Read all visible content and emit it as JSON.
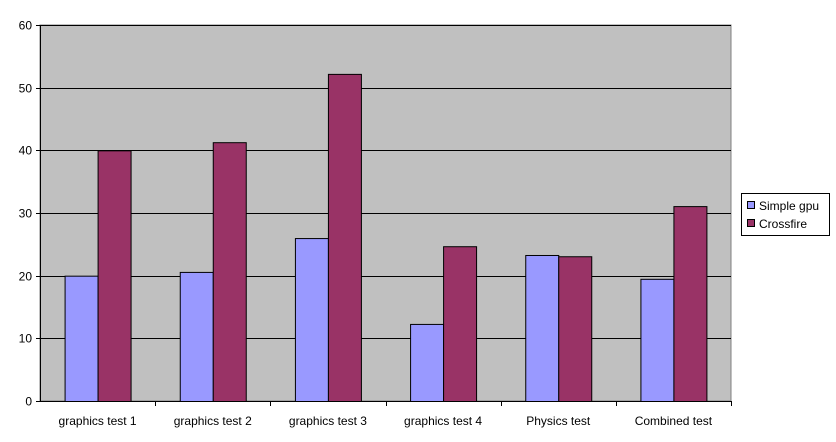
{
  "chart_data": {
    "type": "bar",
    "title": "",
    "xlabel": "",
    "ylabel": "",
    "categories": [
      "graphics test 1",
      "graphics test 2",
      "graphics test 3",
      "graphics test 4",
      "Physics test",
      "Combined test"
    ],
    "series": [
      {
        "name": "Simple gpu",
        "color": "#9999ff",
        "values": [
          20,
          20.6,
          26,
          12.3,
          23.3,
          19.5
        ]
      },
      {
        "name": "Crossfire",
        "color": "#993366",
        "values": [
          40,
          41.3,
          52.2,
          24.7,
          23.1,
          31.1
        ]
      }
    ],
    "ylim": [
      0,
      60
    ],
    "yticks": [
      0,
      10,
      20,
      30,
      40,
      50,
      60
    ],
    "grid": true,
    "legend_position": "right",
    "plot_background": "#c0c0c0"
  }
}
